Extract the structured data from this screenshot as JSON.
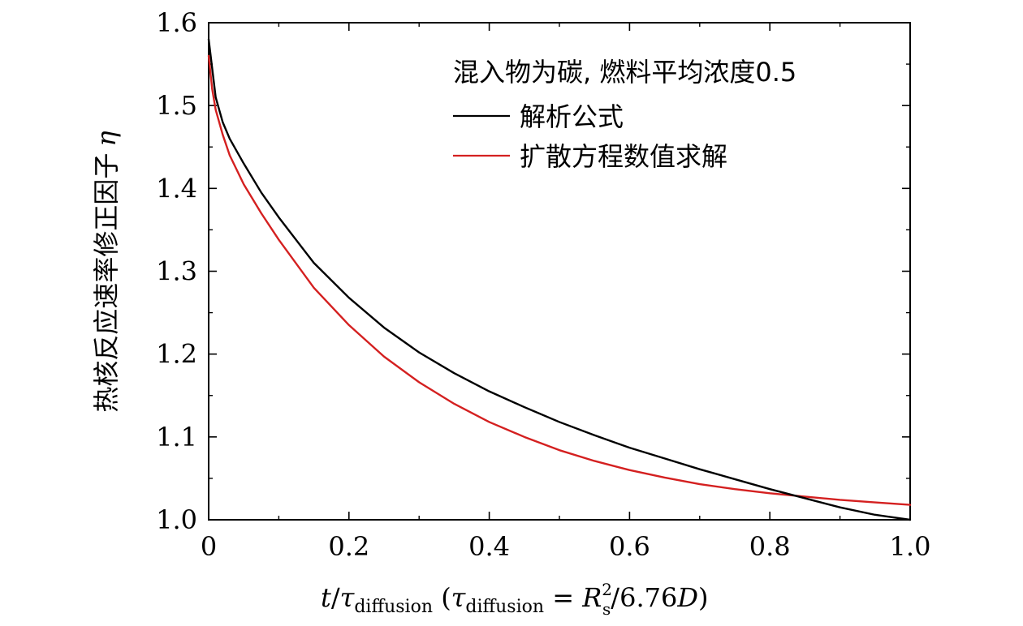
{
  "chart_data": {
    "type": "line",
    "xlabel_parts": {
      "var": "t",
      "slash": "/",
      "tau": "τ",
      "sub": "diffusion",
      "paren_open": " (",
      "tau2": "τ",
      "sub2": "diffusion",
      "eq": " = ",
      "R": "R",
      "R_sup": "2",
      "R_sub": "s",
      "tail": "/6.76",
      "D": "D",
      "paren_close": ")"
    },
    "ylabel": "热核反应速率修正因子",
    "ylabel_symbol": "η",
    "xlim": [
      0,
      1.0
    ],
    "ylim": [
      1.0,
      1.6
    ],
    "x_ticks": [
      "0",
      "0.2",
      "0.4",
      "0.6",
      "0.8",
      "1.0"
    ],
    "y_ticks": [
      "1.0",
      "1.1",
      "1.2",
      "1.3",
      "1.4",
      "1.5",
      "1.6"
    ],
    "legend_title": "混入物为碳, 燃料平均浓度0.5",
    "legend_position": "top-right",
    "series": [
      {
        "name": "解析公式",
        "color": "#000000",
        "x": [
          0,
          0.005,
          0.01,
          0.02,
          0.03,
          0.05,
          0.075,
          0.1,
          0.15,
          0.2,
          0.25,
          0.3,
          0.35,
          0.4,
          0.45,
          0.5,
          0.55,
          0.6,
          0.65,
          0.7,
          0.75,
          0.8,
          0.85,
          0.9,
          0.95,
          1.0
        ],
        "y": [
          1.58,
          1.545,
          1.51,
          1.48,
          1.46,
          1.43,
          1.395,
          1.365,
          1.31,
          1.268,
          1.232,
          1.202,
          1.177,
          1.155,
          1.136,
          1.118,
          1.102,
          1.087,
          1.074,
          1.061,
          1.049,
          1.037,
          1.026,
          1.015,
          1.006,
          1.0
        ]
      },
      {
        "name": "扩散方程数值求解",
        "color": "#d42020",
        "x": [
          0,
          0.005,
          0.01,
          0.02,
          0.03,
          0.05,
          0.075,
          0.1,
          0.15,
          0.2,
          0.25,
          0.3,
          0.35,
          0.4,
          0.45,
          0.5,
          0.55,
          0.6,
          0.65,
          0.7,
          0.75,
          0.8,
          0.85,
          0.9,
          0.95,
          1.0
        ],
        "y": [
          1.56,
          1.52,
          1.495,
          1.465,
          1.44,
          1.405,
          1.37,
          1.338,
          1.28,
          1.235,
          1.197,
          1.166,
          1.14,
          1.118,
          1.1,
          1.084,
          1.071,
          1.06,
          1.051,
          1.043,
          1.037,
          1.032,
          1.028,
          1.024,
          1.021,
          1.018
        ]
      }
    ]
  }
}
